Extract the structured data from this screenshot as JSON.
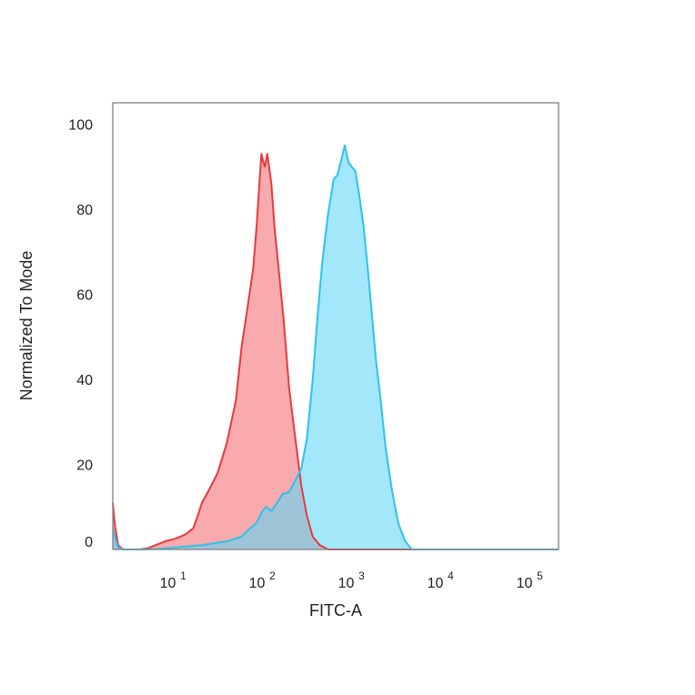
{
  "chart_data": {
    "type": "area",
    "title": "",
    "xlabel": "FITC-A",
    "ylabel": "Normalized To Mode",
    "x_scale": "log",
    "xlim": [
      2,
      200000
    ],
    "ylim": [
      0,
      105
    ],
    "grid": false,
    "legend": "none",
    "x_ticks": [
      {
        "value": 10,
        "base": "10",
        "exp": "1"
      },
      {
        "value": 100,
        "base": "10",
        "exp": "2"
      },
      {
        "value": 1000,
        "base": "10",
        "exp": "3"
      },
      {
        "value": 10000,
        "base": "10",
        "exp": "4"
      },
      {
        "value": 100000,
        "base": "10",
        "exp": "5"
      }
    ],
    "y_ticks": [
      {
        "value": 0,
        "label": "0"
      },
      {
        "value": 20,
        "label": "20"
      },
      {
        "value": 40,
        "label": "40"
      },
      {
        "value": 60,
        "label": "60"
      },
      {
        "value": 80,
        "label": "80"
      },
      {
        "value": 100,
        "label": "100"
      }
    ],
    "series": [
      {
        "color": "#e8393e",
        "fill": "#f4767a",
        "points": [
          [
            2,
            11
          ],
          [
            2.1,
            6
          ],
          [
            2.3,
            1
          ],
          [
            2.6,
            0
          ],
          [
            4,
            0
          ],
          [
            5,
            0.3
          ],
          [
            6,
            1
          ],
          [
            8,
            2
          ],
          [
            10,
            2.5
          ],
          [
            13,
            3.5
          ],
          [
            16,
            5
          ],
          [
            18,
            8
          ],
          [
            20,
            11
          ],
          [
            24,
            14
          ],
          [
            30,
            18
          ],
          [
            38,
            25
          ],
          [
            48,
            35
          ],
          [
            56,
            48
          ],
          [
            65,
            57
          ],
          [
            75,
            66
          ],
          [
            82,
            76
          ],
          [
            88,
            86
          ],
          [
            93,
            93
          ],
          [
            98,
            91
          ],
          [
            102,
            90
          ],
          [
            108,
            93
          ],
          [
            113,
            90
          ],
          [
            120,
            86
          ],
          [
            130,
            76
          ],
          [
            145,
            66
          ],
          [
            165,
            54
          ],
          [
            190,
            38
          ],
          [
            220,
            27
          ],
          [
            260,
            15
          ],
          [
            300,
            8
          ],
          [
            350,
            3
          ],
          [
            420,
            1
          ],
          [
            520,
            0
          ],
          [
            5000,
            0
          ]
        ]
      },
      {
        "color": "#2ec2ea",
        "fill": "#5ed6f7",
        "points": [
          [
            2,
            5
          ],
          [
            2.1,
            3
          ],
          [
            2.3,
            0.5
          ],
          [
            2.6,
            0
          ],
          [
            5,
            0
          ],
          [
            8,
            0.3
          ],
          [
            20,
            1
          ],
          [
            40,
            2
          ],
          [
            55,
            3
          ],
          [
            70,
            5
          ],
          [
            80,
            6
          ],
          [
            88,
            7.5
          ],
          [
            95,
            9
          ],
          [
            105,
            10
          ],
          [
            120,
            9
          ],
          [
            140,
            11
          ],
          [
            160,
            13
          ],
          [
            190,
            13.5
          ],
          [
            220,
            16
          ],
          [
            260,
            19
          ],
          [
            300,
            26
          ],
          [
            350,
            40
          ],
          [
            400,
            56
          ],
          [
            450,
            68
          ],
          [
            520,
            79
          ],
          [
            600,
            87
          ],
          [
            660,
            88
          ],
          [
            720,
            91
          ],
          [
            800,
            95
          ],
          [
            880,
            91
          ],
          [
            950,
            90
          ],
          [
            1050,
            89
          ],
          [
            1150,
            84
          ],
          [
            1300,
            76
          ],
          [
            1450,
            66
          ],
          [
            1600,
            56
          ],
          [
            1800,
            44
          ],
          [
            2000,
            36
          ],
          [
            2300,
            24
          ],
          [
            2700,
            14
          ],
          [
            3200,
            6
          ],
          [
            3800,
            2
          ],
          [
            4500,
            0
          ],
          [
            200000,
            0
          ]
        ]
      }
    ]
  }
}
